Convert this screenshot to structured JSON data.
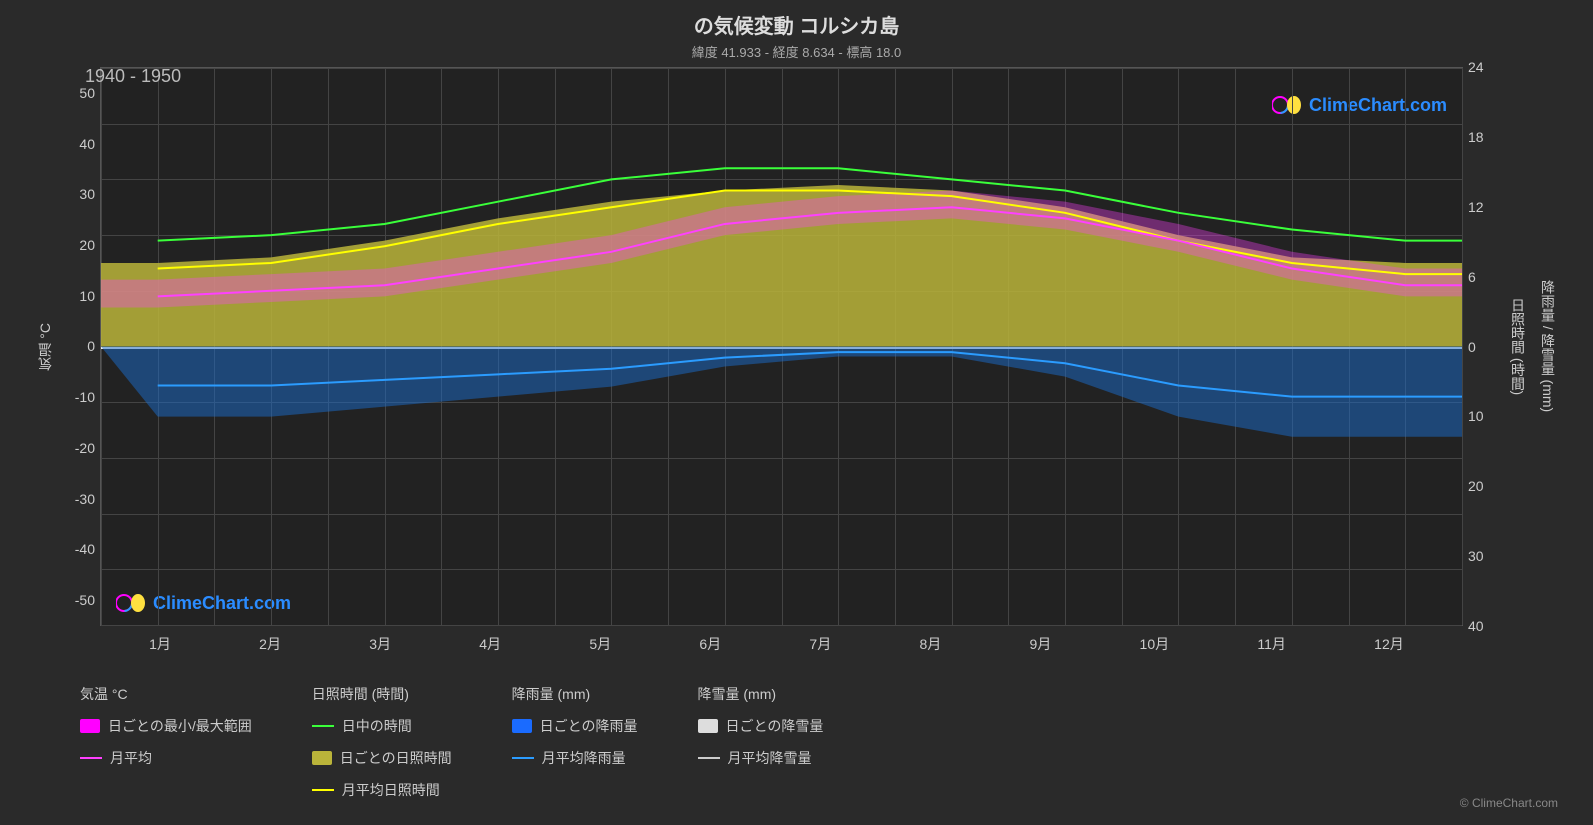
{
  "title": "の気候変動 コルシカ島",
  "subtitle": "緯度 41.933 - 経度 8.634 - 標高 18.0",
  "period": "1940 - 1950",
  "background_color": "#2a2a2a",
  "plot_background": "#222222",
  "grid_color": "#444444",
  "text_color": "#cccccc",
  "y_left": {
    "label": "気温 °C",
    "ticks": [
      "50",
      "40",
      "30",
      "20",
      "10",
      "0",
      "-10",
      "-20",
      "-30",
      "-40",
      "-50"
    ],
    "min": -50,
    "max": 50
  },
  "y_right_top": {
    "label": "日照時間 (時間)",
    "ticks": [
      "24",
      "18",
      "12",
      "6",
      "0"
    ]
  },
  "y_right_bottom": {
    "label": "降雨量 / 降雪量 (mm)",
    "ticks": [
      "0",
      "10",
      "20",
      "30",
      "40"
    ]
  },
  "x_axis": {
    "labels": [
      "1月",
      "2月",
      "3月",
      "4月",
      "5月",
      "6月",
      "7月",
      "8月",
      "9月",
      "10月",
      "11月",
      "12月"
    ]
  },
  "series": {
    "daylight": {
      "color": "#3aff3a",
      "values": [
        19,
        20,
        22,
        26,
        30,
        32,
        32,
        30,
        28,
        24,
        21,
        19
      ]
    },
    "sunshine_avg": {
      "color": "#ffff00",
      "values": [
        14,
        15,
        18,
        22,
        25,
        28,
        28,
        27,
        24,
        19,
        15,
        13
      ]
    },
    "temp_avg": {
      "color": "#ff40ff",
      "values": [
        9,
        10,
        11,
        14,
        17,
        22,
        24,
        25,
        23,
        19,
        14,
        11
      ]
    },
    "rain_avg": {
      "color": "#2b9cff",
      "values": [
        -7,
        -7,
        -6,
        -5,
        -4,
        -2,
        -1,
        -1,
        -3,
        -7,
        -9,
        -9
      ]
    },
    "sunshine_band": {
      "color": "#bab43a",
      "opacity": 0.85,
      "top_values": [
        15,
        16,
        19,
        23,
        26,
        28,
        29,
        28,
        25,
        20,
        16,
        15
      ],
      "bottom": 0
    },
    "temp_band": {
      "color": "#ff40ff",
      "opacity": 0.35
    },
    "rain_bars": {
      "color": "#1a6bcc",
      "opacity": 0.5
    }
  },
  "legend": {
    "col1": {
      "header": "気温 °C",
      "items": [
        {
          "type": "swatch",
          "color": "#ff00ff",
          "label": "日ごとの最小/最大範囲"
        },
        {
          "type": "line",
          "color": "#ff40ff",
          "label": "月平均"
        }
      ]
    },
    "col2": {
      "header": "日照時間 (時間)",
      "items": [
        {
          "type": "line",
          "color": "#3aff3a",
          "label": "日中の時間"
        },
        {
          "type": "swatch",
          "color": "#bab43a",
          "label": "日ごとの日照時間"
        },
        {
          "type": "line",
          "color": "#ffff00",
          "label": "月平均日照時間"
        }
      ]
    },
    "col3": {
      "header": "降雨量 (mm)",
      "items": [
        {
          "type": "swatch",
          "color": "#1a6bff",
          "label": "日ごとの降雨量"
        },
        {
          "type": "line",
          "color": "#2b9cff",
          "label": "月平均降雨量"
        }
      ]
    },
    "col4": {
      "header": "降雪量 (mm)",
      "items": [
        {
          "type": "swatch",
          "color": "#dddddd",
          "label": "日ごとの降雪量"
        },
        {
          "type": "line",
          "color": "#cccccc",
          "label": "月平均降雪量"
        }
      ]
    }
  },
  "watermark_text": "ClimeChart.com",
  "footer": "© ClimeChart.com"
}
